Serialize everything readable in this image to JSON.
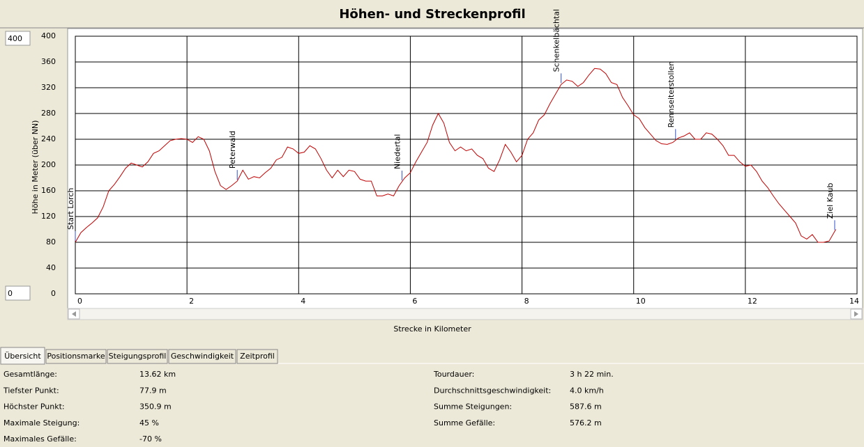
{
  "window": {
    "title": "Höhen- und Streckenprofil"
  },
  "controls": {
    "y_max": "400",
    "y_min": "0"
  },
  "chart_data": {
    "type": "line",
    "x_label": "Strecke in Kilometer",
    "y_label": "Höhe in Meter (über NN)",
    "x": [
      0,
      0.1,
      0.2,
      0.3,
      0.4,
      0.5,
      0.6,
      0.7,
      0.8,
      0.9,
      1.0,
      1.1,
      1.2,
      1.3,
      1.4,
      1.5,
      1.6,
      1.7,
      1.8,
      1.9,
      2.0,
      2.1,
      2.2,
      2.3,
      2.4,
      2.5,
      2.6,
      2.7,
      2.8,
      2.9,
      3.0,
      3.1,
      3.2,
      3.3,
      3.4,
      3.5,
      3.6,
      3.7,
      3.8,
      3.9,
      4.0,
      4.1,
      4.2,
      4.3,
      4.4,
      4.5,
      4.6,
      4.7,
      4.8,
      4.9,
      5.0,
      5.1,
      5.2,
      5.3,
      5.4,
      5.5,
      5.6,
      5.7,
      5.8,
      5.9,
      6.0,
      6.1,
      6.2,
      6.3,
      6.4,
      6.5,
      6.6,
      6.7,
      6.8,
      6.9,
      7.0,
      7.1,
      7.2,
      7.3,
      7.4,
      7.5,
      7.6,
      7.7,
      7.8,
      7.9,
      8.0,
      8.1,
      8.2,
      8.3,
      8.4,
      8.5,
      8.6,
      8.7,
      8.8,
      8.9,
      9.0,
      9.1,
      9.2,
      9.3,
      9.4,
      9.5,
      9.6,
      9.7,
      9.8,
      9.9,
      10.0,
      10.1,
      10.2,
      10.3,
      10.4,
      10.5,
      10.6,
      10.7,
      10.8,
      10.9,
      11.0,
      11.1,
      11.2,
      11.3,
      11.4,
      11.5,
      11.6,
      11.7,
      11.8,
      11.9,
      12.0,
      12.1,
      12.2,
      12.3,
      12.4,
      12.5,
      12.6,
      12.7,
      12.8,
      12.9,
      13.0,
      13.1,
      13.2,
      13.3,
      13.4,
      13.5,
      13.62
    ],
    "series": [
      {
        "name": "Höhe",
        "color": "#c00000",
        "values": [
          80,
          95,
          103,
          110,
          118,
          135,
          160,
          170,
          182,
          195,
          203,
          200,
          197,
          205,
          218,
          222,
          230,
          238,
          240,
          241,
          240,
          235,
          244,
          240,
          222,
          190,
          168,
          162,
          168,
          175,
          192,
          178,
          182,
          180,
          188,
          195,
          208,
          212,
          228,
          225,
          218,
          220,
          230,
          225,
          210,
          192,
          180,
          192,
          182,
          192,
          190,
          178,
          175,
          175,
          152,
          152,
          155,
          152,
          168,
          180,
          188,
          205,
          220,
          235,
          262,
          280,
          265,
          235,
          222,
          228,
          222,
          225,
          215,
          210,
          195,
          190,
          208,
          232,
          220,
          205,
          215,
          240,
          250,
          270,
          278,
          295,
          310,
          325,
          332,
          330,
          322,
          328,
          340,
          350,
          349,
          342,
          328,
          325,
          305,
          292,
          278,
          272,
          258,
          248,
          238,
          233,
          232,
          235,
          242,
          245,
          250,
          240,
          240,
          250,
          248,
          240,
          230,
          215,
          215,
          205,
          198,
          200,
          190,
          175,
          165,
          152,
          140,
          130,
          120,
          110,
          90,
          85,
          92,
          80,
          80,
          82,
          100
        ]
      }
    ],
    "waypoints": [
      {
        "label": "Start Lorch",
        "x": 0
      },
      {
        "label": "Peterwald",
        "x": 2.9
      },
      {
        "label": "Niedertal",
        "x": 5.85
      },
      {
        "label": "Schenkelbächtal",
        "x": 8.7
      },
      {
        "label": "Rennseiterstollen",
        "x": 10.75
      },
      {
        "label": "Ziel Kaub",
        "x": 13.6
      }
    ],
    "xlim": [
      0,
      14
    ],
    "xticks": [
      0,
      2,
      4,
      6,
      8,
      10,
      12,
      14
    ],
    "ylim": [
      0,
      400
    ],
    "yticks": [
      0,
      40,
      80,
      120,
      160,
      200,
      240,
      280,
      320,
      360,
      400
    ],
    "grid": true
  },
  "tabs": [
    "Übersicht",
    "Positionsmarke",
    "Steigungsprofil",
    "Geschwindigkeit",
    "Zeitprofil"
  ],
  "stats": {
    "left": [
      [
        "Gesamtlänge:",
        "13.62 km"
      ],
      [
        "Tiefster Punkt:",
        "77.9 m"
      ],
      [
        "Höchster Punkt:",
        "350.9 m"
      ],
      [
        "Maximale Steigung:",
        "45 %"
      ],
      [
        "Maximales Gefälle:",
        "-70 %"
      ]
    ],
    "right": [
      [
        "Tourdauer:",
        "3 h 22 min."
      ],
      [
        "Durchschnittsgeschwindigkeit:",
        "4.0 km/h"
      ],
      [
        "Summe Steigungen:",
        "587.6 m"
      ],
      [
        "Summe Gefälle:",
        "576.2 m"
      ]
    ]
  }
}
